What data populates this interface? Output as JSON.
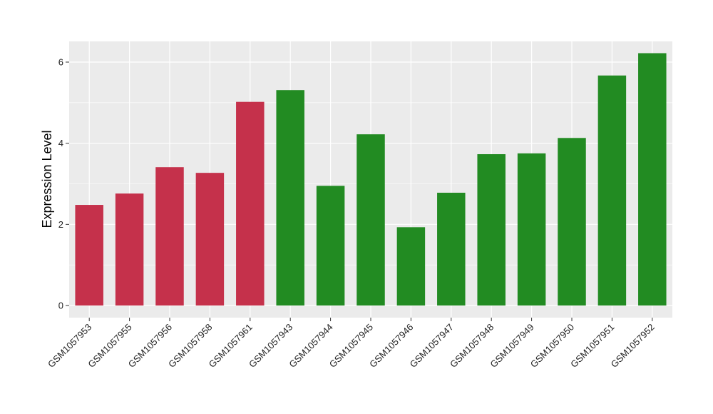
{
  "chart_data": {
    "type": "bar",
    "title": "",
    "xlabel": "",
    "ylabel": "Expression Level",
    "ylim": [
      0,
      6.5
    ],
    "y_ticks": [
      0,
      2,
      4,
      6
    ],
    "y_tick_labels": [
      "0",
      "2",
      "4",
      "6"
    ],
    "grid": true,
    "panel_background": "#EBEBEB",
    "grid_color": "#FFFFFF",
    "categories": [
      "GSM1057953",
      "GSM1057955",
      "GSM1057956",
      "GSM1057958",
      "GSM1057961",
      "GSM1057943",
      "GSM1057944",
      "GSM1057945",
      "GSM1057946",
      "GSM1057947",
      "GSM1057948",
      "GSM1057949",
      "GSM1057950",
      "GSM1057951",
      "GSM1057952"
    ],
    "values": [
      2.48,
      2.76,
      3.41,
      3.27,
      5.02,
      5.31,
      2.95,
      4.22,
      1.93,
      2.78,
      3.73,
      3.75,
      4.13,
      5.67,
      6.22
    ],
    "groups": [
      "red",
      "red",
      "red",
      "red",
      "red",
      "green",
      "green",
      "green",
      "green",
      "green",
      "green",
      "green",
      "green",
      "green",
      "green"
    ],
    "colors": {
      "red": "#C5314B",
      "green": "#228B22"
    }
  }
}
